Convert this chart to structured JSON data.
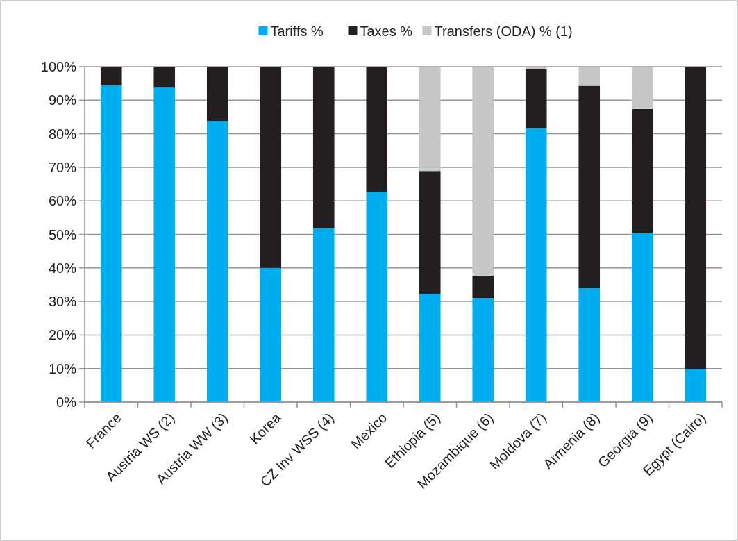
{
  "chart_data": {
    "type": "bar",
    "stacked": true,
    "categories": [
      "France",
      "Austria WS (2)",
      "Austria WW (3)",
      "Korea",
      "CZ Inv WSS (4)",
      "Mexico",
      "Ethiopia (5)",
      "Mozambique (6)",
      "Moldova (7)",
      "Armenia (8)",
      "Georgia (9)",
      "Egypt (Cairo)"
    ],
    "series": [
      {
        "name": "Tariffs %",
        "color": "#00aeef",
        "values": [
          94.4,
          93.9,
          83.8,
          40,
          51.8,
          62.7,
          32.3,
          31.0,
          81.6,
          34.0,
          50.4,
          9.9
        ]
      },
      {
        "name": "Taxes %",
        "color": "#231f20",
        "values": [
          5.6,
          6.1,
          16.2,
          60,
          48.2,
          37.3,
          36.6,
          6.7,
          17.6,
          60.3,
          37.0,
          90.1
        ]
      },
      {
        "name": "Transfers (ODA) % (1)",
        "color": "#c6c7c9",
        "values": [
          0,
          0,
          0,
          0,
          0,
          0,
          31.1,
          62.3,
          0.8,
          5.7,
          12.6,
          0
        ]
      }
    ],
    "ylim": [
      0,
      100
    ],
    "yticks": [
      {
        "value": 0,
        "label": "0%"
      },
      {
        "value": 10,
        "label": "10%"
      },
      {
        "value": 20,
        "label": "20%"
      },
      {
        "value": 30,
        "label": "30%"
      },
      {
        "value": 40,
        "label": "40%"
      },
      {
        "value": 50,
        "label": "50%"
      },
      {
        "value": 60,
        "label": "60%"
      },
      {
        "value": 70,
        "label": "70%"
      },
      {
        "value": 80,
        "label": "80%"
      },
      {
        "value": 90,
        "label": "90%"
      },
      {
        "value": 100,
        "label": "100%"
      }
    ],
    "grid": "y",
    "legend": "top"
  }
}
